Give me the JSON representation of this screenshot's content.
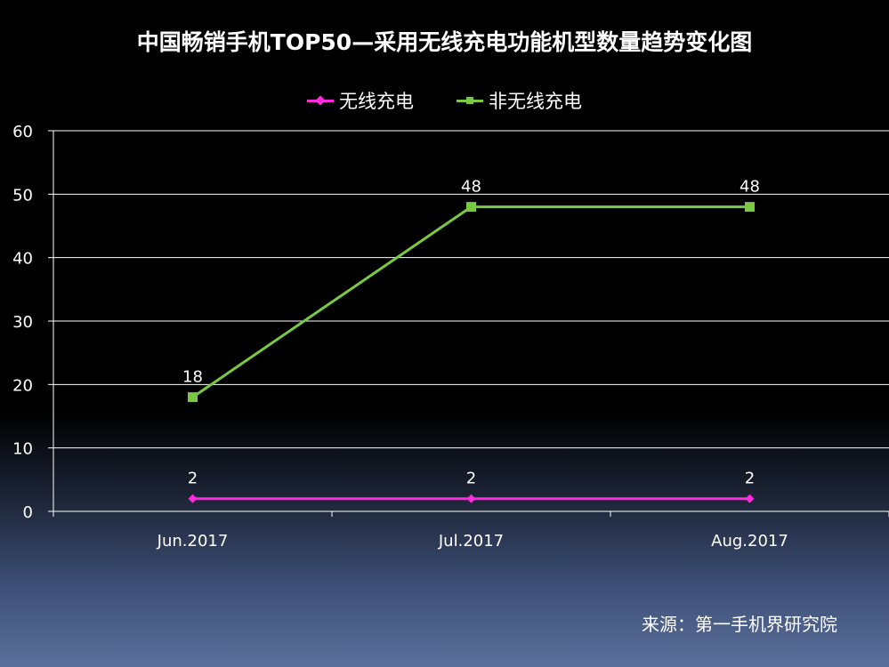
{
  "title": "中国畅销手机TOP50—采用无线充电功能机型数量趋势变化图",
  "source": "来源：第一手机界研究院",
  "colors": {
    "series_wireless": "#ff2bdc",
    "series_non_wireless": "#7ac943",
    "grid": "#ffffff",
    "text": "#ffffff"
  },
  "chart_data": {
    "type": "line",
    "title": "中国畅销手机TOP50—采用无线充电功能机型数量趋势变化图",
    "categories": [
      "Jun.2017",
      "Jul.2017",
      "Aug.2017"
    ],
    "series": [
      {
        "name": "无线充电",
        "values": [
          2,
          2,
          2
        ],
        "marker": "diamond",
        "color": "#ff2bdc"
      },
      {
        "name": "非无线充电",
        "values": [
          18,
          48,
          48
        ],
        "marker": "square",
        "color": "#7ac943"
      }
    ],
    "yticks": [
      "0",
      "10",
      "20",
      "30",
      "40",
      "50",
      "60"
    ],
    "ylim": [
      0,
      60
    ],
    "grid": true,
    "legend_position": "top-center",
    "data_labels": true
  }
}
